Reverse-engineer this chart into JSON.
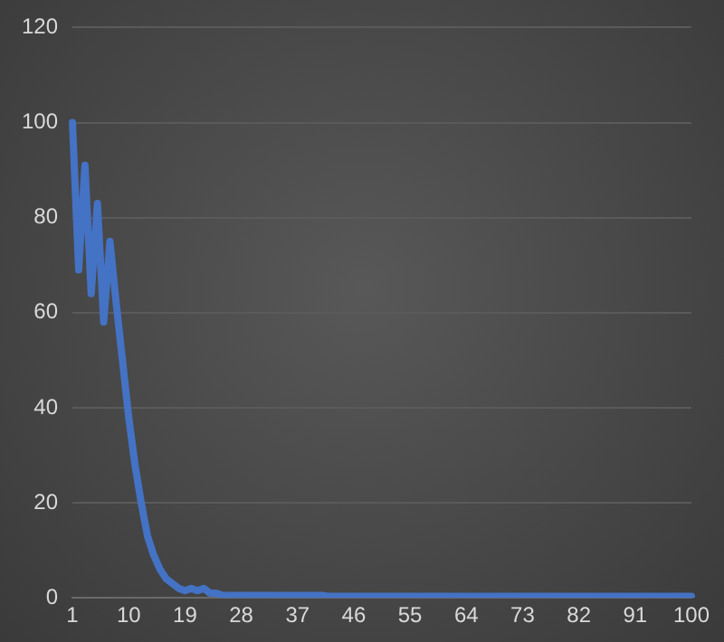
{
  "chart_data": {
    "type": "line",
    "categories": [
      "1",
      null,
      null,
      null,
      null,
      null,
      null,
      null,
      null,
      "10",
      null,
      null,
      null,
      null,
      null,
      null,
      null,
      null,
      "19",
      null,
      null,
      null,
      null,
      null,
      null,
      null,
      null,
      "28",
      null,
      null,
      null,
      null,
      null,
      null,
      null,
      null,
      "37",
      null,
      null,
      null,
      null,
      null,
      null,
      null,
      null,
      "46",
      null,
      null,
      null,
      null,
      null,
      null,
      null,
      null,
      "55",
      null,
      null,
      null,
      null,
      null,
      null,
      null,
      null,
      "64",
      null,
      null,
      null,
      null,
      null,
      null,
      null,
      null,
      "73",
      null,
      null,
      null,
      null,
      null,
      null,
      null,
      null,
      "82",
      null,
      null,
      null,
      null,
      null,
      null,
      null,
      null,
      "91",
      null,
      null,
      null,
      null,
      null,
      null,
      null,
      null,
      "100"
    ],
    "series": [
      {
        "color": "#4472c4",
        "values": [
          100,
          69,
          91,
          64,
          83,
          58,
          75,
          62,
          50,
          38,
          28,
          20,
          13,
          9,
          6,
          4,
          3,
          2,
          1.5,
          2,
          1.5,
          2,
          1,
          1,
          0.5,
          0.5,
          0.5,
          0.5,
          0.5,
          0.5,
          0.5,
          0.5,
          0.5,
          0.5,
          0.5,
          0.5,
          0.5,
          0.5,
          0.5,
          0.5,
          0.5,
          0.3,
          0.3,
          0.3,
          0.3,
          0.3,
          0.3,
          0.3,
          0.3,
          0.3,
          0.3,
          0.3,
          0.3,
          0.3,
          0.3,
          0.3,
          0.3,
          0.3,
          0.3,
          0.3,
          0.3,
          0.3,
          0.3,
          0.3,
          0.3,
          0.3,
          0.3,
          0.3,
          0.3,
          0.3,
          0.3,
          0.3,
          0.3,
          0.3,
          0.3,
          0.3,
          0.3,
          0.3,
          0.3,
          0.3,
          0.3,
          0.3,
          0.3,
          0.3,
          0.3,
          0.3,
          0.3,
          0.3,
          0.3,
          0.3,
          0.3,
          0.3,
          0.3,
          0.3,
          0.3,
          0.3,
          0.3,
          0.3,
          0.3,
          0.3
        ]
      }
    ],
    "ylim": [
      0,
      120
    ],
    "yticks": [
      0,
      20,
      40,
      60,
      80,
      100,
      120
    ],
    "grid": "y",
    "marker": "none",
    "line_style": "solid"
  }
}
